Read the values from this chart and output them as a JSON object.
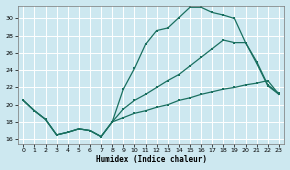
{
  "xlabel": "Humidex (Indice chaleur)",
  "bg_color": "#cde8f0",
  "grid_color": "#ffffff",
  "line_color": "#1a7060",
  "ylim": [
    15.5,
    31.5
  ],
  "xlim": [
    -0.5,
    23.5
  ],
  "yticks": [
    16,
    18,
    20,
    22,
    24,
    26,
    28,
    30
  ],
  "xticks": [
    0,
    1,
    2,
    3,
    4,
    5,
    6,
    7,
    8,
    9,
    10,
    11,
    12,
    13,
    14,
    15,
    16,
    17,
    18,
    19,
    20,
    21,
    22,
    23
  ],
  "series1_x": [
    0,
    1,
    2,
    3,
    4,
    5,
    6,
    7,
    8,
    9,
    10,
    11,
    12,
    13,
    14,
    15,
    16,
    17,
    18,
    19,
    20,
    21,
    22,
    23
  ],
  "series1_y": [
    20.5,
    19.3,
    18.3,
    16.5,
    16.8,
    17.2,
    17.0,
    16.3,
    18.0,
    21.8,
    24.2,
    27.0,
    28.6,
    28.9,
    30.1,
    31.3,
    31.3,
    30.7,
    30.4,
    30.0,
    27.2,
    25.0,
    22.3,
    21.3
  ],
  "series2_x": [
    0,
    1,
    2,
    3,
    4,
    5,
    6,
    7,
    8,
    9,
    10,
    11,
    12,
    13,
    14,
    15,
    16,
    17,
    18,
    19,
    20,
    21,
    22,
    23
  ],
  "series2_y": [
    20.5,
    19.3,
    18.3,
    16.5,
    16.8,
    17.2,
    17.0,
    16.3,
    18.0,
    19.5,
    20.5,
    21.2,
    22.0,
    22.8,
    23.5,
    24.5,
    25.5,
    26.5,
    27.5,
    27.2,
    27.2,
    24.8,
    22.2,
    21.2
  ],
  "series3_x": [
    0,
    1,
    2,
    3,
    4,
    5,
    6,
    7,
    8,
    9,
    10,
    11,
    12,
    13,
    14,
    15,
    16,
    17,
    18,
    19,
    20,
    21,
    22,
    23
  ],
  "series3_y": [
    20.5,
    19.3,
    18.3,
    16.5,
    16.8,
    17.2,
    17.0,
    16.3,
    18.0,
    18.5,
    19.0,
    19.3,
    19.7,
    20.0,
    20.5,
    20.8,
    21.2,
    21.5,
    21.8,
    22.0,
    22.3,
    22.5,
    22.8,
    21.2
  ]
}
